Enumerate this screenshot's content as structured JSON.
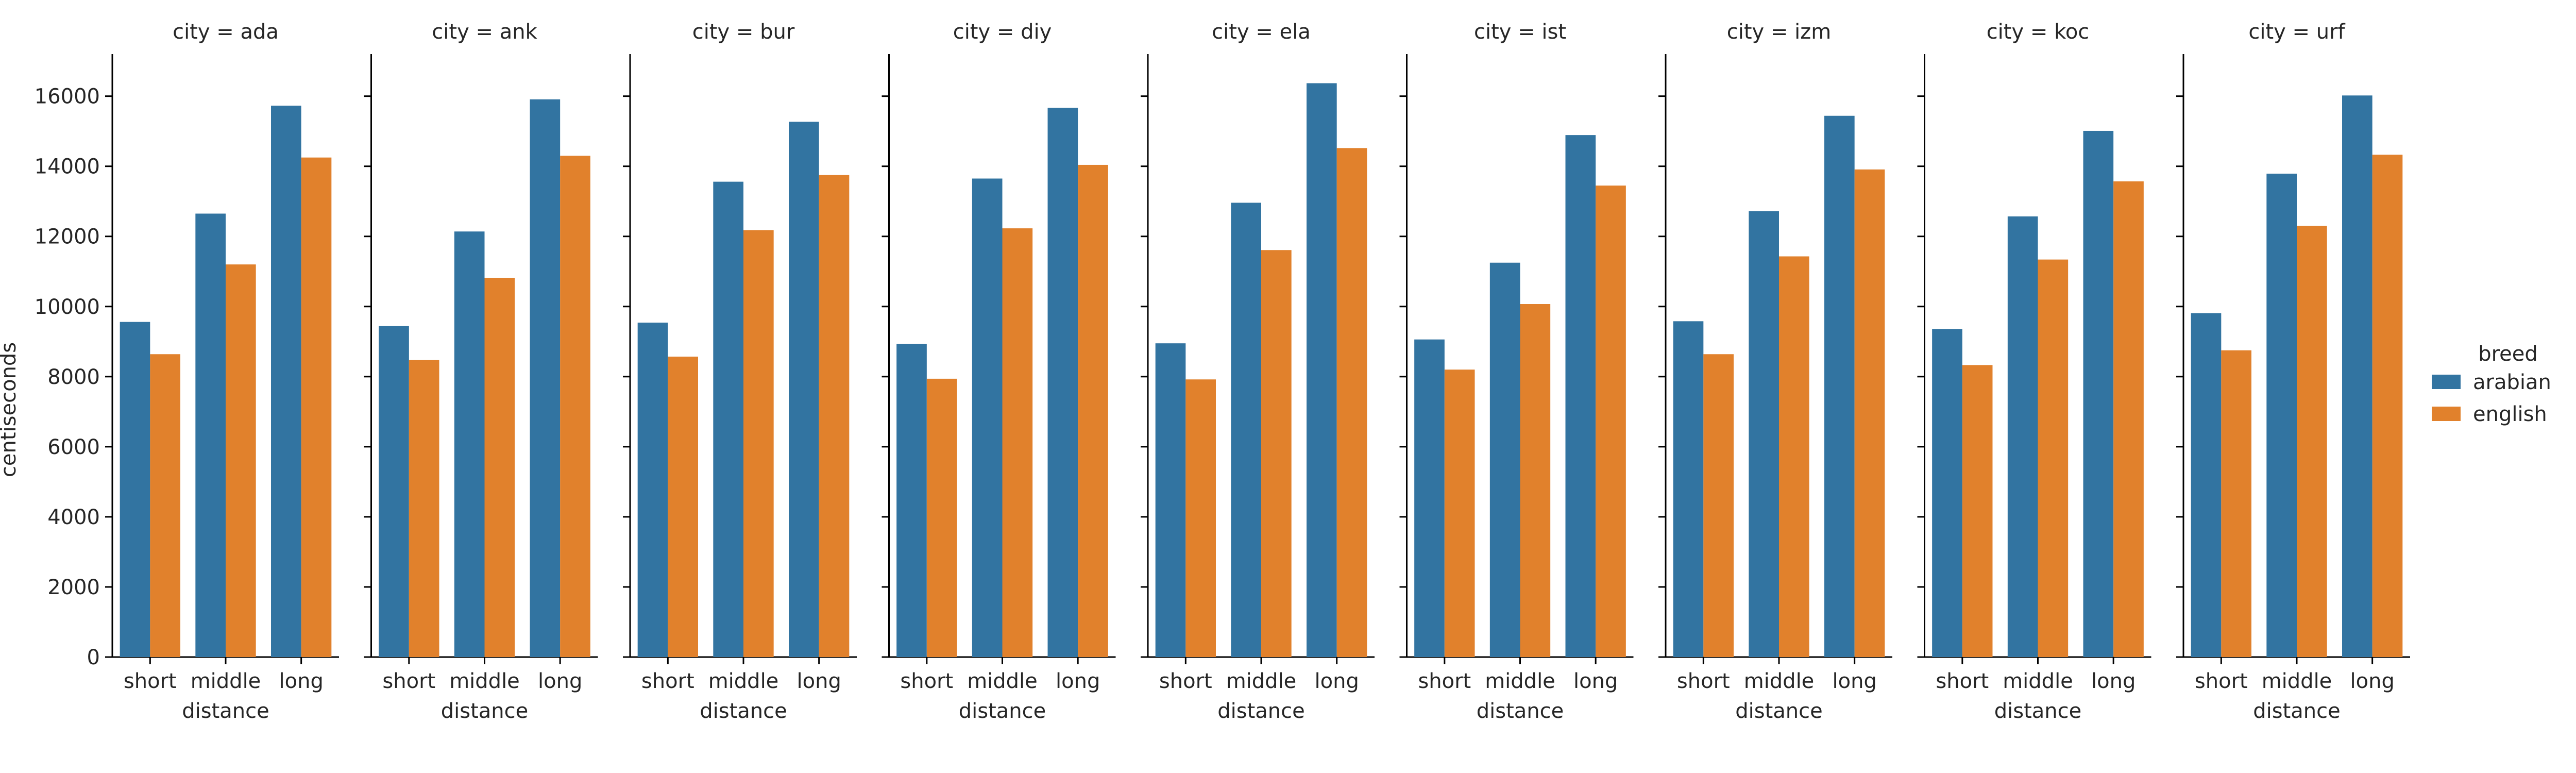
{
  "chart_data": {
    "type": "bar",
    "ylabel": "centiseconds",
    "xlabel": "distance",
    "facet_variable": "city",
    "facet_title_template": "city = {}",
    "categories": [
      "short",
      "middle",
      "long"
    ],
    "ylim": [
      0,
      17200
    ],
    "yticks": [
      0,
      2000,
      4000,
      6000,
      8000,
      10000,
      12000,
      14000,
      16000
    ],
    "legend": {
      "title": "breed",
      "placement": "right"
    },
    "series_colors": {
      "arabian": "#3274a1",
      "english": "#e1812c"
    },
    "grid": false,
    "facets": [
      {
        "facet": "ada",
        "series": [
          {
            "name": "arabian",
            "values": [
              9560,
              12650,
              15730
            ]
          },
          {
            "name": "english",
            "values": [
              8640,
              11200,
              14250
            ]
          }
        ]
      },
      {
        "facet": "ank",
        "series": [
          {
            "name": "arabian",
            "values": [
              9440,
              12140,
              15910
            ]
          },
          {
            "name": "english",
            "values": [
              8470,
              10820,
              14300
            ]
          }
        ]
      },
      {
        "facet": "bur",
        "series": [
          {
            "name": "arabian",
            "values": [
              9540,
              13560,
              15270
            ]
          },
          {
            "name": "english",
            "values": [
              8570,
              12180,
              13750
            ]
          }
        ]
      },
      {
        "facet": "diy",
        "series": [
          {
            "name": "arabian",
            "values": [
              8930,
              13650,
              15670
            ]
          },
          {
            "name": "english",
            "values": [
              7940,
              12230,
              14040
            ]
          }
        ]
      },
      {
        "facet": "ela",
        "series": [
          {
            "name": "arabian",
            "values": [
              8950,
              12960,
              16370
            ]
          },
          {
            "name": "english",
            "values": [
              7920,
              11610,
              14520
            ]
          }
        ]
      },
      {
        "facet": "ist",
        "series": [
          {
            "name": "arabian",
            "values": [
              9060,
              11250,
              14890
            ]
          },
          {
            "name": "english",
            "values": [
              8200,
              10070,
              13450
            ]
          }
        ]
      },
      {
        "facet": "izm",
        "series": [
          {
            "name": "arabian",
            "values": [
              9580,
              12720,
              15440
            ]
          },
          {
            "name": "english",
            "values": [
              8640,
              11430,
              13910
            ]
          }
        ]
      },
      {
        "facet": "koc",
        "series": [
          {
            "name": "arabian",
            "values": [
              9360,
              12570,
              15010
            ]
          },
          {
            "name": "english",
            "values": [
              8330,
              11340,
              13570
            ]
          }
        ]
      },
      {
        "facet": "urf",
        "series": [
          {
            "name": "arabian",
            "values": [
              9810,
              13790,
              16020
            ]
          },
          {
            "name": "english",
            "values": [
              8750,
              12300,
              14330
            ]
          }
        ]
      }
    ]
  }
}
